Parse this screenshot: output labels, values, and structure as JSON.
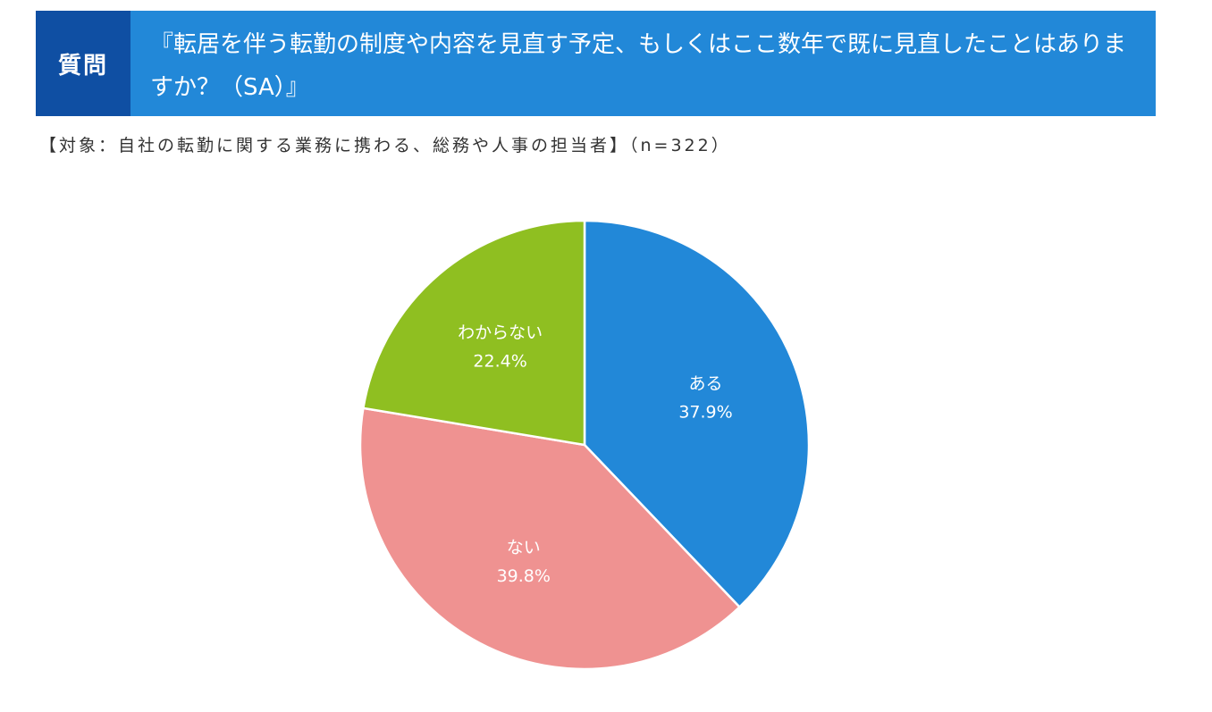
{
  "header": {
    "tag": "質問",
    "question": "『転居を伴う転勤の制度や内容を見直す予定、もしくはここ数年で既に見直したことはありますか？（SA）』"
  },
  "subtitle": "【対象：自社の転勤に関する業務に携わる、総務や人事の担当者】（n=322）",
  "chart_data": {
    "type": "pie",
    "categories": [
      "ある",
      "ない",
      "わからない"
    ],
    "values": [
      37.9,
      39.8,
      22.4
    ],
    "labels": [
      "37.9%",
      "39.8%",
      "22.4%"
    ],
    "colors": [
      "#2288d8",
      "#ef9291",
      "#8fbf21"
    ],
    "start_angle": "12 o'clock, clockwise"
  }
}
